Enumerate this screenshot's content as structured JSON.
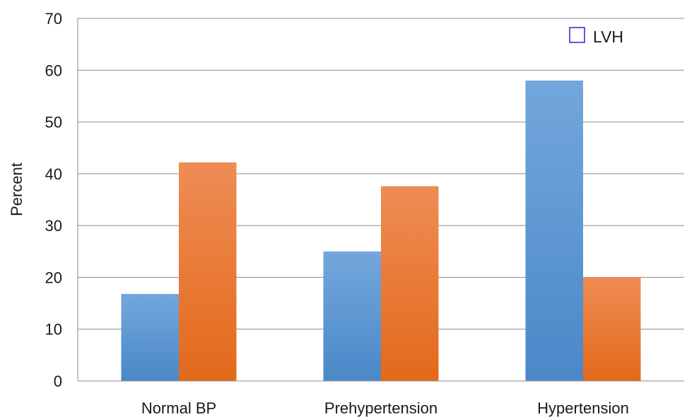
{
  "chart_data": {
    "type": "bar",
    "title": "",
    "xlabel": "",
    "ylabel": "Percent",
    "ylim": [
      0,
      70
    ],
    "yticks": [
      0,
      10,
      20,
      30,
      40,
      50,
      60,
      70
    ],
    "grid": true,
    "categories": [
      "Normal BP",
      "Prehypertension",
      "Hypertension"
    ],
    "series": [
      {
        "values": [
          16.8,
          25.0,
          58.0
        ],
        "color": "#5b9bd5"
      },
      {
        "values": [
          42.2,
          37.6,
          20.0
        ],
        "color": "#ed7d31"
      }
    ],
    "legend": {
      "placement": "top-right",
      "entries": [
        {
          "label": "LVH",
          "swatch": "outline",
          "color": "#3333cc"
        }
      ]
    }
  }
}
